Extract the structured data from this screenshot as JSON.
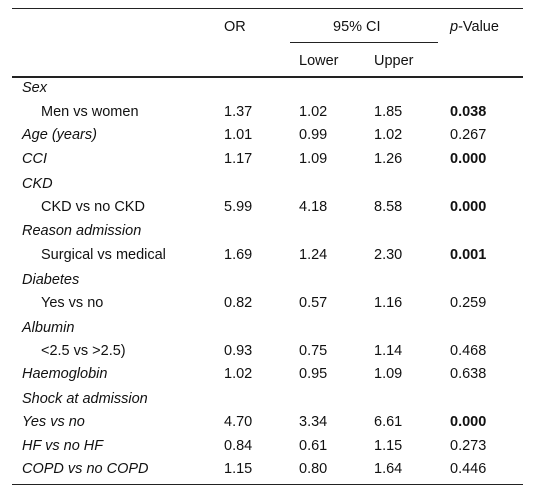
{
  "header": {
    "or": "OR",
    "ci": "95% CI",
    "lower": "Lower",
    "upper": "Upper",
    "p_italic": "p",
    "p_rest": "-Value"
  },
  "rows": [
    {
      "label": "Sex",
      "style": "category",
      "or": "",
      "lower": "",
      "upper": "",
      "p": "",
      "p_bold": false
    },
    {
      "label": "Men vs women",
      "style": "indent",
      "or": "1.37",
      "lower": "1.02",
      "upper": "1.85",
      "p": "0.038",
      "p_bold": true
    },
    {
      "label": "Age (years)",
      "style": "italic",
      "or": "1.01",
      "lower": "0.99",
      "upper": "1.02",
      "p": "0.267",
      "p_bold": false
    },
    {
      "label": "CCI",
      "style": "italic",
      "or": "1.17",
      "lower": "1.09",
      "upper": "1.26",
      "p": "0.000",
      "p_bold": true
    },
    {
      "label": "CKD",
      "style": "category",
      "or": "",
      "lower": "",
      "upper": "",
      "p": "",
      "p_bold": false
    },
    {
      "label": "CKD vs no CKD",
      "style": "indent",
      "or": "5.99",
      "lower": "4.18",
      "upper": "8.58",
      "p": "0.000",
      "p_bold": true
    },
    {
      "label": "Reason admission",
      "style": "category",
      "or": "",
      "lower": "",
      "upper": "",
      "p": "",
      "p_bold": false
    },
    {
      "label": "Surgical vs medical",
      "style": "indent",
      "or": "1.69",
      "lower": "1.24",
      "upper": "2.30",
      "p": "0.001",
      "p_bold": true
    },
    {
      "label": "Diabetes",
      "style": "category",
      "or": "",
      "lower": "",
      "upper": "",
      "p": "",
      "p_bold": false
    },
    {
      "label": "Yes vs no",
      "style": "indent",
      "or": "0.82",
      "lower": "0.57",
      "upper": "1.16",
      "p": "0.259",
      "p_bold": false
    },
    {
      "label": "Albumin",
      "style": "category",
      "or": "",
      "lower": "",
      "upper": "",
      "p": "",
      "p_bold": false
    },
    {
      "label": "<2.5 vs >2.5)",
      "style": "indent",
      "or": "0.93",
      "lower": "0.75",
      "upper": "1.14",
      "p": "0.468",
      "p_bold": false
    },
    {
      "label": "Haemoglobin",
      "style": "italic",
      "or": "1.02",
      "lower": "0.95",
      "upper": "1.09",
      "p": "0.638",
      "p_bold": false
    },
    {
      "label": "Shock at admission",
      "style": "category",
      "or": "",
      "lower": "",
      "upper": "",
      "p": "",
      "p_bold": false
    },
    {
      "label": "Yes vs no",
      "style": "italic",
      "or": "4.70",
      "lower": "3.34",
      "upper": "6.61",
      "p": "0.000",
      "p_bold": true
    },
    {
      "label": "HF vs no HF",
      "style": "italic",
      "or": "0.84",
      "lower": "0.61",
      "upper": "1.15",
      "p": "0.273",
      "p_bold": false
    },
    {
      "label": "COPD vs no COPD",
      "style": "italic",
      "or": "1.15",
      "lower": "0.80",
      "upper": "1.64",
      "p": "0.446",
      "p_bold": false
    }
  ]
}
